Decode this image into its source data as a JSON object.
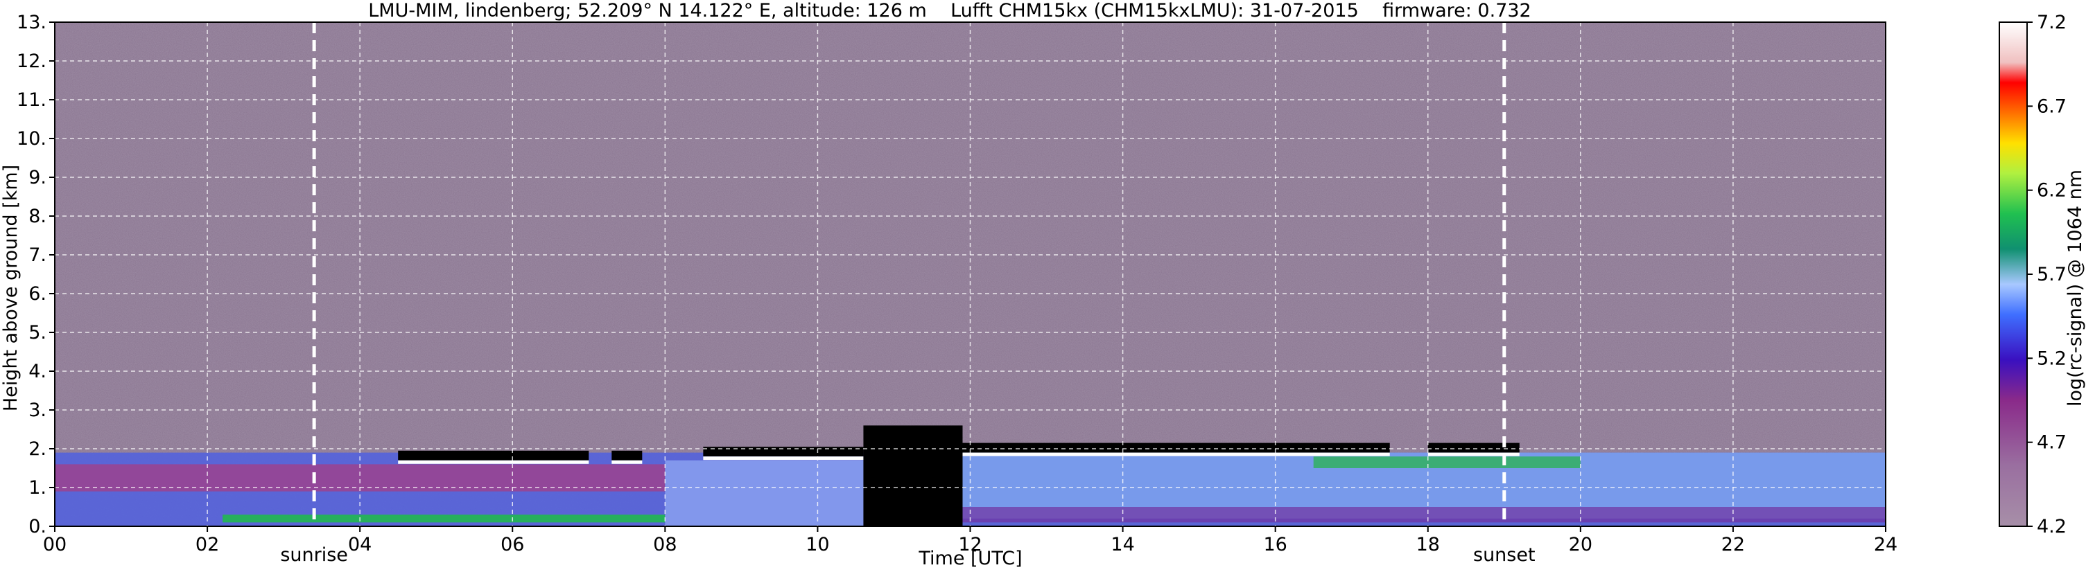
{
  "chart_data": {
    "type": "heatmap",
    "title": "LMU-MIM, lindenberg; 52.209° N 14.122° E, altitude: 126 m    Lufft CHM15kx (CHM15kxLMU): 31-07-2015    firmware: 0.732",
    "xlabel": "Time [UTC]",
    "ylabel": "Height above ground [km]",
    "xlim": [
      0,
      24
    ],
    "ylim": [
      0,
      13
    ],
    "x_ticks": [
      "00",
      "02",
      "04",
      "06",
      "08",
      "10",
      "12",
      "14",
      "16",
      "18",
      "20",
      "22",
      "24"
    ],
    "y_ticks": [
      "0.",
      "1.",
      "2.",
      "3.",
      "4.",
      "5.",
      "6.",
      "7.",
      "8.",
      "9.",
      "10.",
      "11.",
      "12.",
      "13."
    ],
    "grid": true,
    "colorbar": {
      "label": "log(rc-signal) @ 1064 nm",
      "range": [
        4.2,
        7.2
      ],
      "ticks": [
        "4.2",
        "4.7",
        "5.2",
        "5.7",
        "6.2",
        "6.7",
        "7.2"
      ]
    },
    "markers": [
      {
        "label": "sunrise",
        "time": 3.4
      },
      {
        "label": "sunset",
        "time": 19.0
      }
    ],
    "data_gap": {
      "start": 10.6,
      "end": 11.9
    },
    "cloud_base_km": [
      {
        "start": 4.5,
        "end": 7.0,
        "height": 1.8
      },
      {
        "start": 7.3,
        "end": 7.7,
        "height": 1.8
      },
      {
        "start": 8.5,
        "end": 10.6,
        "height": 1.9
      },
      {
        "start": 11.9,
        "end": 17.5,
        "height": 2.0
      },
      {
        "start": 18.0,
        "end": 19.2,
        "height": 2.0
      }
    ]
  }
}
